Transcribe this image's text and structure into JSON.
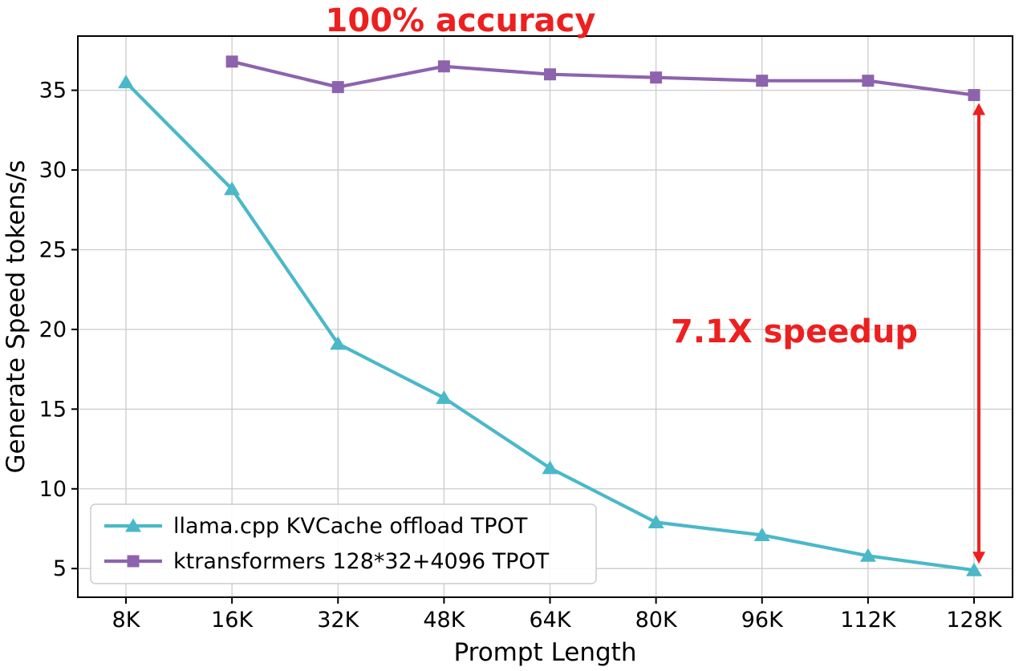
{
  "figure": {
    "background": "#ffffff"
  },
  "annotations": {
    "accuracy": "100% accuracy",
    "speedup": "7.1X speedup",
    "color": "#ed1f1f"
  },
  "chart_data": {
    "type": "line",
    "title": "",
    "xlabel": "Prompt Length",
    "ylabel": "Generate Speed tokens/s",
    "categories": [
      "8K",
      "16K",
      "32K",
      "48K",
      "64K",
      "80K",
      "96K",
      "112K",
      "128K"
    ],
    "yticks": [
      5,
      10,
      15,
      20,
      25,
      30,
      35
    ],
    "ylim": [
      3.2,
      38.4
    ],
    "grid": true,
    "grid_color": "#cccccc",
    "spine_color": "#000000",
    "legend_position": "lower-left",
    "series": [
      {
        "name": "llama.cpp KVCache offload TPOT",
        "color": "#4ab8c9",
        "marker": "triangle",
        "values": [
          35.5,
          28.8,
          19.1,
          15.7,
          11.3,
          7.9,
          7.1,
          5.8,
          4.9
        ]
      },
      {
        "name": "ktransformers 128*32+4096 TPOT",
        "color": "#8d63ae",
        "marker": "square",
        "values": [
          null,
          36.8,
          35.2,
          36.5,
          36.0,
          35.8,
          35.6,
          35.6,
          34.7
        ]
      }
    ],
    "arrow": {
      "x_category": "128K",
      "y_top": 34.2,
      "y_bottom": 5.3,
      "color": "#ed1f1f"
    }
  }
}
